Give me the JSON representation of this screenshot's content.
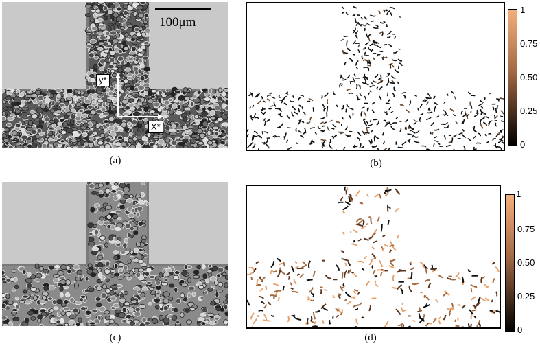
{
  "panels": [
    {
      "id": "a",
      "caption": "(a)"
    },
    {
      "id": "b",
      "caption": "(b)"
    },
    {
      "id": "c",
      "caption": "(c)"
    },
    {
      "id": "d",
      "caption": "(d)"
    }
  ],
  "scale_bar": {
    "label": "100μm"
  },
  "axes": {
    "x_label": "X*",
    "y_label": "y*"
  },
  "colorbar_top": {
    "ticks": [
      "1",
      "0.75",
      "0.50",
      "0.25",
      "0"
    ],
    "colors": {
      "high": "#f4b07c",
      "low": "#000000"
    }
  },
  "colorbar_bottom": {
    "ticks": [
      "1",
      "0.75",
      "0.50",
      "0.25",
      "0"
    ],
    "colors": {
      "high": "#f4b07c",
      "low": "#000000"
    }
  }
}
